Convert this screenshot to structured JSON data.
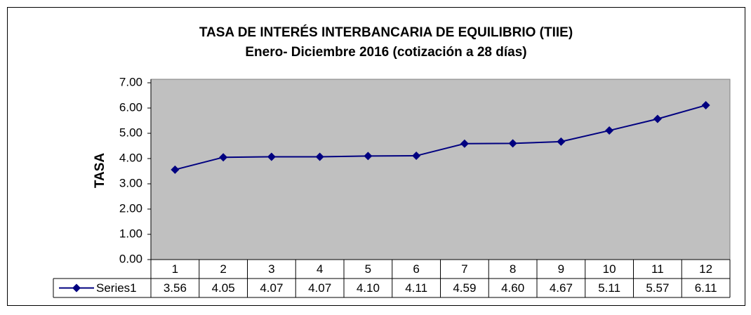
{
  "chart_data": {
    "type": "line",
    "title": "TASA DE INTERÉS INTERBANCARIA DE EQUILIBRIO (TIIE)",
    "subtitle": "Enero- Diciembre 2016 (cotización a 28 días)",
    "y_label": "TASA",
    "categories": [
      "1",
      "2",
      "3",
      "4",
      "5",
      "6",
      "7",
      "8",
      "9",
      "10",
      "11",
      "12"
    ],
    "series": [
      {
        "name": "Series1",
        "color": "#000080",
        "values": [
          3.56,
          4.05,
          4.07,
          4.07,
          4.1,
          4.11,
          4.59,
          4.6,
          4.67,
          5.11,
          5.57,
          6.11
        ],
        "value_labels": [
          "3.56",
          "4.05",
          "4.07",
          "4.07",
          "4.10",
          "4.11",
          "4.59",
          "4.60",
          "4.67",
          "5.11",
          "5.57",
          "6.11"
        ]
      }
    ],
    "ylim": [
      0,
      7
    ],
    "yticks": [
      {
        "value": 0,
        "label": "0.00"
      },
      {
        "value": 1,
        "label": "1.00"
      },
      {
        "value": 2,
        "label": "2.00"
      },
      {
        "value": 3,
        "label": "3.00"
      },
      {
        "value": 4,
        "label": "4.00"
      },
      {
        "value": 5,
        "label": "5.00"
      },
      {
        "value": 6,
        "label": "6.00"
      },
      {
        "value": 7,
        "label": "7.00"
      }
    ],
    "plot_background": "#c0c0c0"
  }
}
